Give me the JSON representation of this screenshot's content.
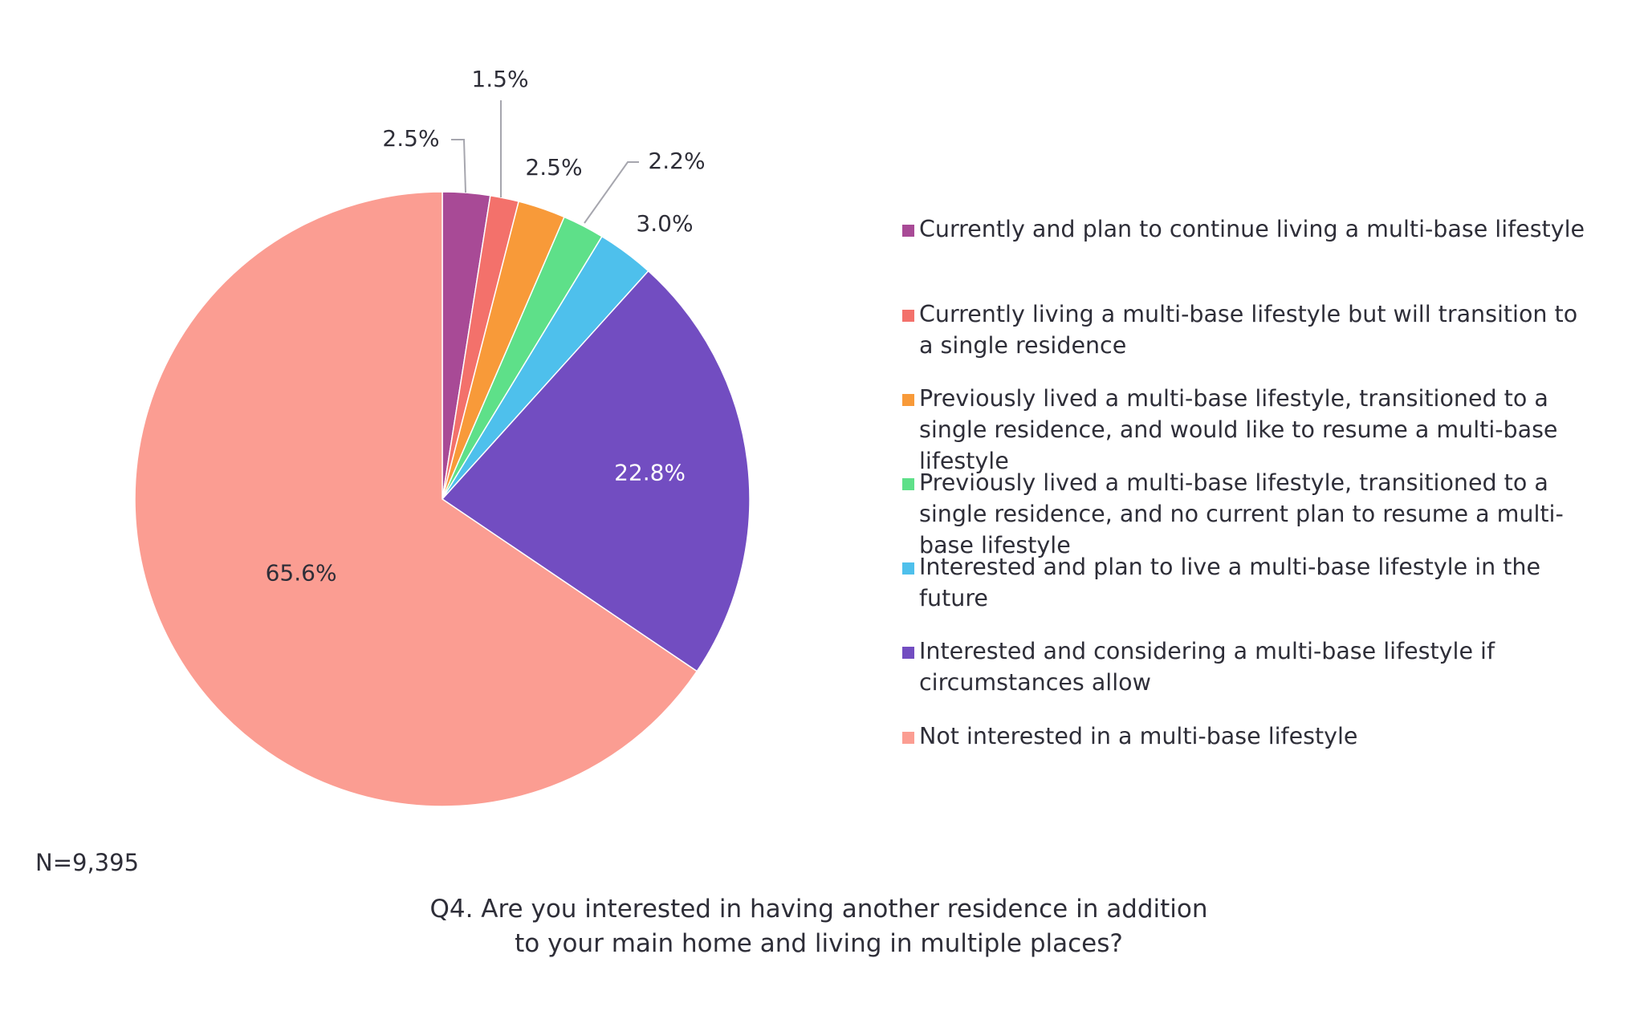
{
  "chart_data": {
    "type": "pie",
    "start_angle_deg": 0,
    "direction": "clockwise",
    "slices": [
      {
        "label": "Currently and plan to continue living a multi-base lifestyle",
        "value": 2.5,
        "display": "2.5%",
        "color": "#a84a96"
      },
      {
        "label": "Currently living a multi-base lifestyle but will transition to a single residence",
        "value": 1.5,
        "display": "1.5%",
        "color": "#f3716b"
      },
      {
        "label": "Previously lived a multi-base lifestyle, transitioned to a single residence, and would like to resume a multi-base lifestyle",
        "value": 2.5,
        "display": "2.5%",
        "color": "#f89a39"
      },
      {
        "label": "Previously lived a multi-base lifestyle, transitioned to a single residence, and no current plan to resume a multi-base lifestyle",
        "value": 2.2,
        "display": "2.2%",
        "color": "#5ee089"
      },
      {
        "label": "Interested and plan to live a multi-base lifestyle in the future",
        "value": 3.0,
        "display": "3.0%",
        "color": "#4ec0ec"
      },
      {
        "label": "Interested and considering a multi-base lifestyle if circumstances allow",
        "value": 22.8,
        "display": "22.8%",
        "color": "#724dc1"
      },
      {
        "label": "Not interested in a multi-base lifestyle",
        "value": 65.6,
        "display": "65.6%",
        "color": "#fb9d92"
      }
    ],
    "legend_position": "right",
    "title": "Q4. Are you interested in having another residence in addition to your main home and living in multiple places?"
  },
  "note": "N=9,395",
  "caption_lines": [
    "Q4. Are you interested in having another residence in addition",
    "to your main home and living in multiple places?"
  ],
  "legend_lines": [
    [
      "Currently and plan to continue living a multi-base lifestyle"
    ],
    [
      "Currently living a multi-base lifestyle but will transition to",
      "a single residence"
    ],
    [
      "Previously lived a multi-base lifestyle, transitioned to a",
      "single residence, and would like to resume a multi-base",
      "lifestyle"
    ],
    [
      "Previously lived a multi-base lifestyle, transitioned to a",
      "single residence, and no current plan to resume a multi-",
      "base lifestyle"
    ],
    [
      "Interested and plan to live a multi-base lifestyle in the",
      "future"
    ],
    [
      "Interested and considering a multi-base lifestyle if",
      "circumstances allow"
    ],
    [
      "Not interested in a multi-base lifestyle"
    ]
  ]
}
